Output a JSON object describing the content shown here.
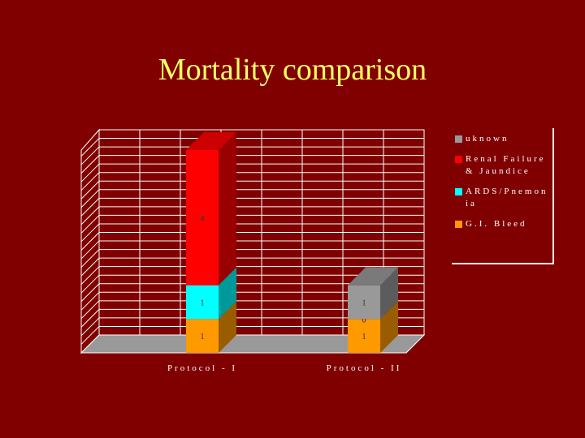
{
  "chart_data": {
    "type": "bar3d-stacked",
    "title": "Mortality comparison",
    "categories": [
      "Protocol - I",
      "Protocol - II"
    ],
    "series": [
      {
        "name": "G.I. Bleed",
        "color": "#ff9900",
        "values": [
          1,
          1
        ]
      },
      {
        "name": "ARDS/Pnemonia",
        "color": "#00ffff",
        "values": [
          1,
          0
        ]
      },
      {
        "name": "Renal Failure & Jaundice",
        "color": "#ff0000",
        "values": [
          4,
          0
        ]
      },
      {
        "name": "uknown",
        "color": "#999999",
        "values": [
          0,
          1
        ]
      }
    ],
    "ylim": [
      0,
      6
    ]
  }
}
